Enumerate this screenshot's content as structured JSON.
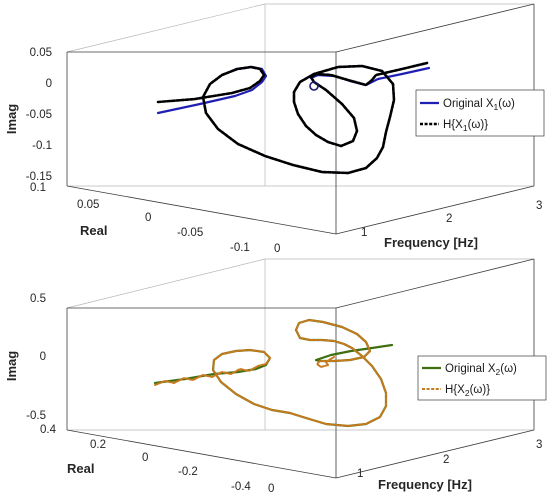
{
  "chart_data": [
    {
      "type": "line",
      "ylabel": "Imag",
      "xlabel": "Real",
      "zlabel": "Frequency [Hz]",
      "axes": {
        "real": {
          "ticks": [
            "0.1",
            "0.05",
            "0",
            "-0.05",
            "-0.1"
          ]
        },
        "imag": {
          "ticks": [
            "0.05",
            "0",
            "-0.05",
            "-0.1",
            "-0.15"
          ]
        },
        "freq": {
          "ticks": [
            "0",
            "1",
            "2",
            "3"
          ]
        }
      },
      "legend": {
        "placement": "right",
        "entries": [
          {
            "pre": "Original X",
            "sub": "1",
            "post": "(ω)"
          },
          {
            "pre": "H{X",
            "sub": "1",
            "post": "(ω)}"
          }
        ]
      },
      "series": [
        {
          "color": "#1f1fb4",
          "style": "solid",
          "width": 2.2
        },
        {
          "color": "#000000",
          "style": "dashed",
          "width": 2.6
        }
      ]
    },
    {
      "type": "line",
      "ylabel": "Imag",
      "xlabel": "Real",
      "zlabel": "Frequency [Hz]",
      "axes": {
        "real": {
          "ticks": [
            "0.4",
            "0.2",
            "0",
            "-0.2",
            "-0.4"
          ]
        },
        "imag": {
          "ticks": [
            "0.5",
            "0",
            "-0.5"
          ]
        },
        "freq": {
          "ticks": [
            "0",
            "1",
            "2",
            "3"
          ]
        }
      },
      "legend": {
        "placement": "right",
        "entries": [
          {
            "pre": "Original X",
            "sub": "2",
            "post": "(ω)"
          },
          {
            "pre": "H{X",
            "sub": "2",
            "post": "(ω)}"
          }
        ]
      },
      "series": [
        {
          "color": "#3e6e10",
          "style": "solid",
          "width": 2.2
        },
        {
          "color": "#c67a1e",
          "style": "dashed",
          "width": 2.0
        }
      ]
    }
  ]
}
